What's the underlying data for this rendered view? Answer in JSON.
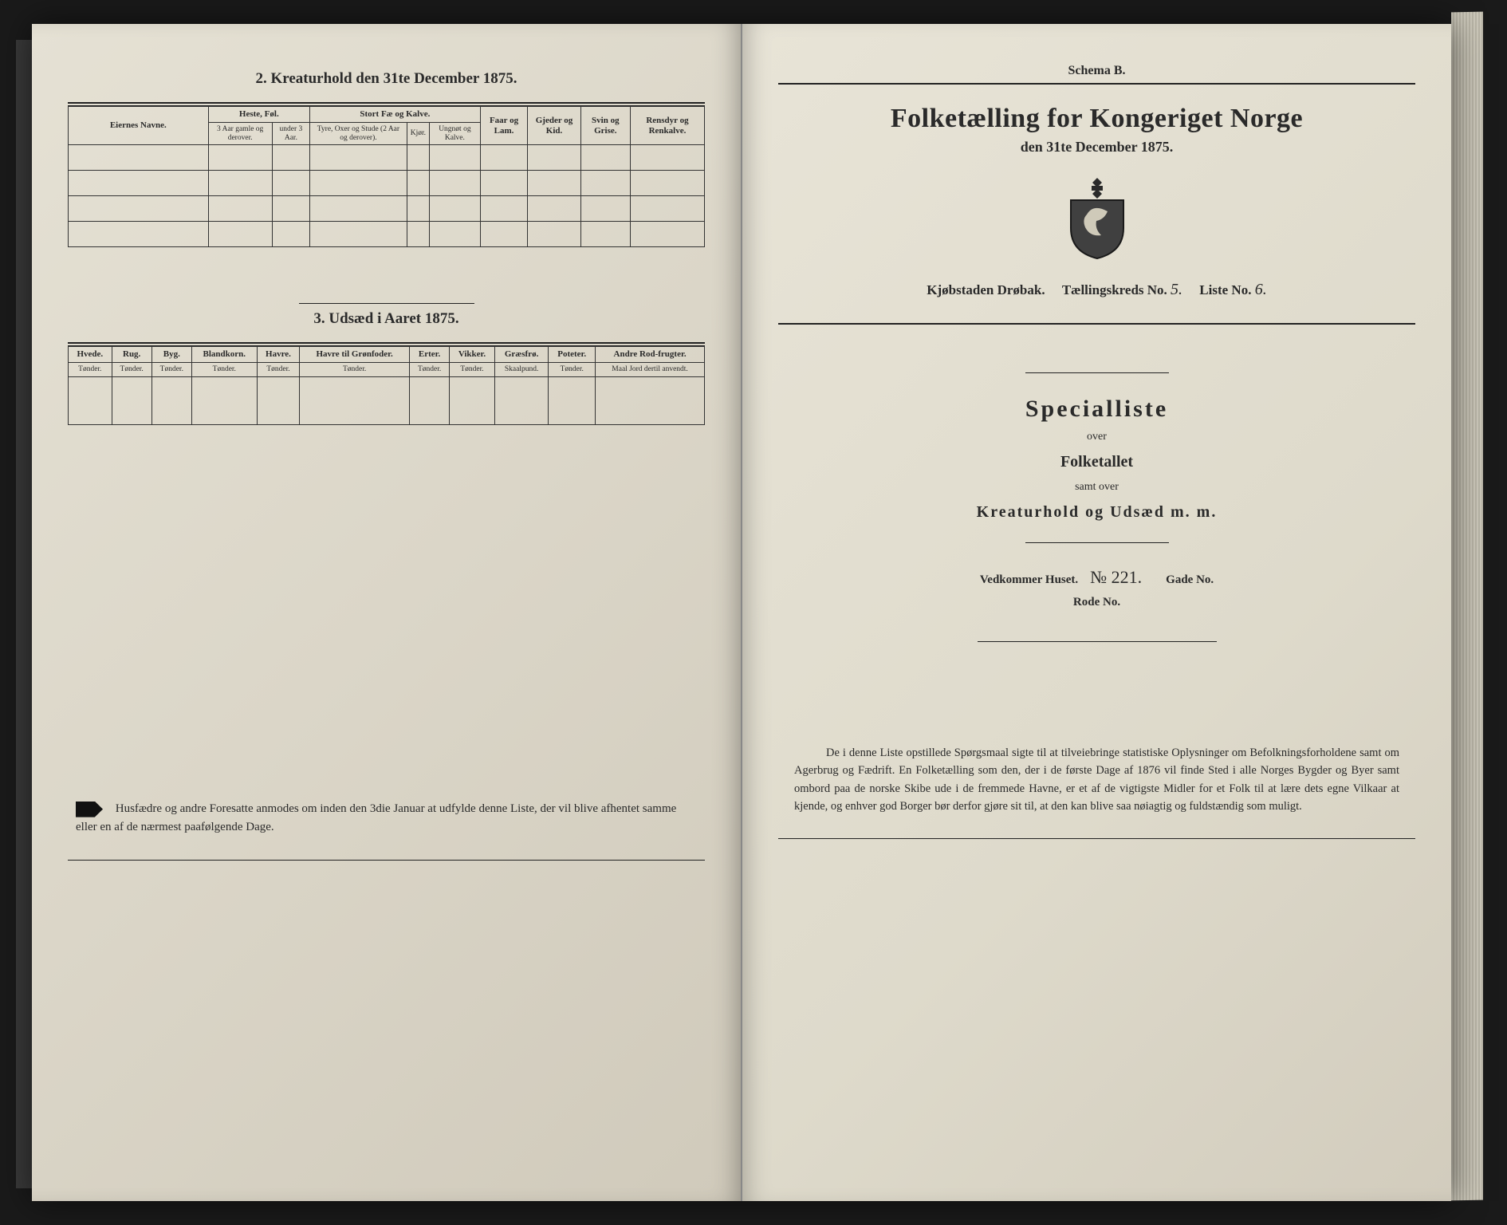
{
  "colors": {
    "background": "#1a1a1a",
    "paper": "#e0dccf",
    "ink": "#2a2a2a",
    "rule": "#222222"
  },
  "left": {
    "section2_title": "2.  Kreaturhold den 31te December 1875.",
    "table2": {
      "col_eier": "Eiernes Navne.",
      "grp_heste": "Heste, Føl.",
      "heste_a": "3 Aar gamle og derover.",
      "heste_b": "under 3 Aar.",
      "grp_stort": "Stort Fæ og Kalve.",
      "stort_a": "Tyre, Oxer og Stude (2 Aar og derover).",
      "stort_b": "Kjør.",
      "stort_c": "Ungnøt og Kalve.",
      "col_faar": "Faar og Lam.",
      "col_gjeder": "Gjeder og Kid.",
      "col_svin": "Svin og Grise.",
      "col_rensdyr": "Rensdyr og Renkalve."
    },
    "section3_title": "3.  Udsæd i Aaret 1875.",
    "table3": {
      "cols": [
        "Hvede.",
        "Rug.",
        "Byg.",
        "Blandkorn.",
        "Havre.",
        "Havre til Grønfoder.",
        "Erter.",
        "Vikker.",
        "Græsfrø.",
        "Poteter.",
        "Andre Rod-frugter."
      ],
      "units": [
        "Tønder.",
        "Tønder.",
        "Tønder.",
        "Tønder.",
        "Tønder.",
        "Tønder.",
        "Tønder.",
        "Tønder.",
        "Skaalpund.",
        "Tønder.",
        "Maal Jord dertil anvendt."
      ]
    },
    "footer": "Husfædre og andre Foresatte anmodes om inden den 3die Januar at udfylde denne Liste, der vil blive afhentet samme eller en af de nærmest paafølgende Dage."
  },
  "right": {
    "schema": "Schema B.",
    "main_title": "Folketælling for Kongeriget Norge",
    "sub_title": "den 31te December 1875.",
    "line_kjob": "Kjøbstaden Drøbak.",
    "line_tkreds": "Tællingskreds No.",
    "tkreds_val": "5.",
    "line_liste": "Liste No.",
    "liste_val": "6.",
    "special": "Specialliste",
    "over1": "over",
    "folketallet": "Folketallet",
    "over2": "samt over",
    "kreatur": "Kreaturhold og Udsæd m. m.",
    "vedk_label": "Vedkommer Huset.",
    "vedk_val": "№ 221.",
    "gade_label": "Gade No.",
    "rode_label": "Rode No.",
    "para": "De i denne Liste opstillede Spørgsmaal sigte til at tilveiebringe statistiske Oplysninger om Befolkningsforholdene samt om Agerbrug og Fædrift.  En Folketælling som den, der i de første Dage af 1876 vil finde Sted i alle Norges Bygder og Byer samt ombord paa de norske Skibe ude i de fremmede Havne, er et af de vigtigste Midler for et Folk til at lære dets egne Vilkaar at kjende, og enhver god Borger bør derfor gjøre sit til, at den kan blive saa nøiagtig og fuldstændig som muligt."
  }
}
